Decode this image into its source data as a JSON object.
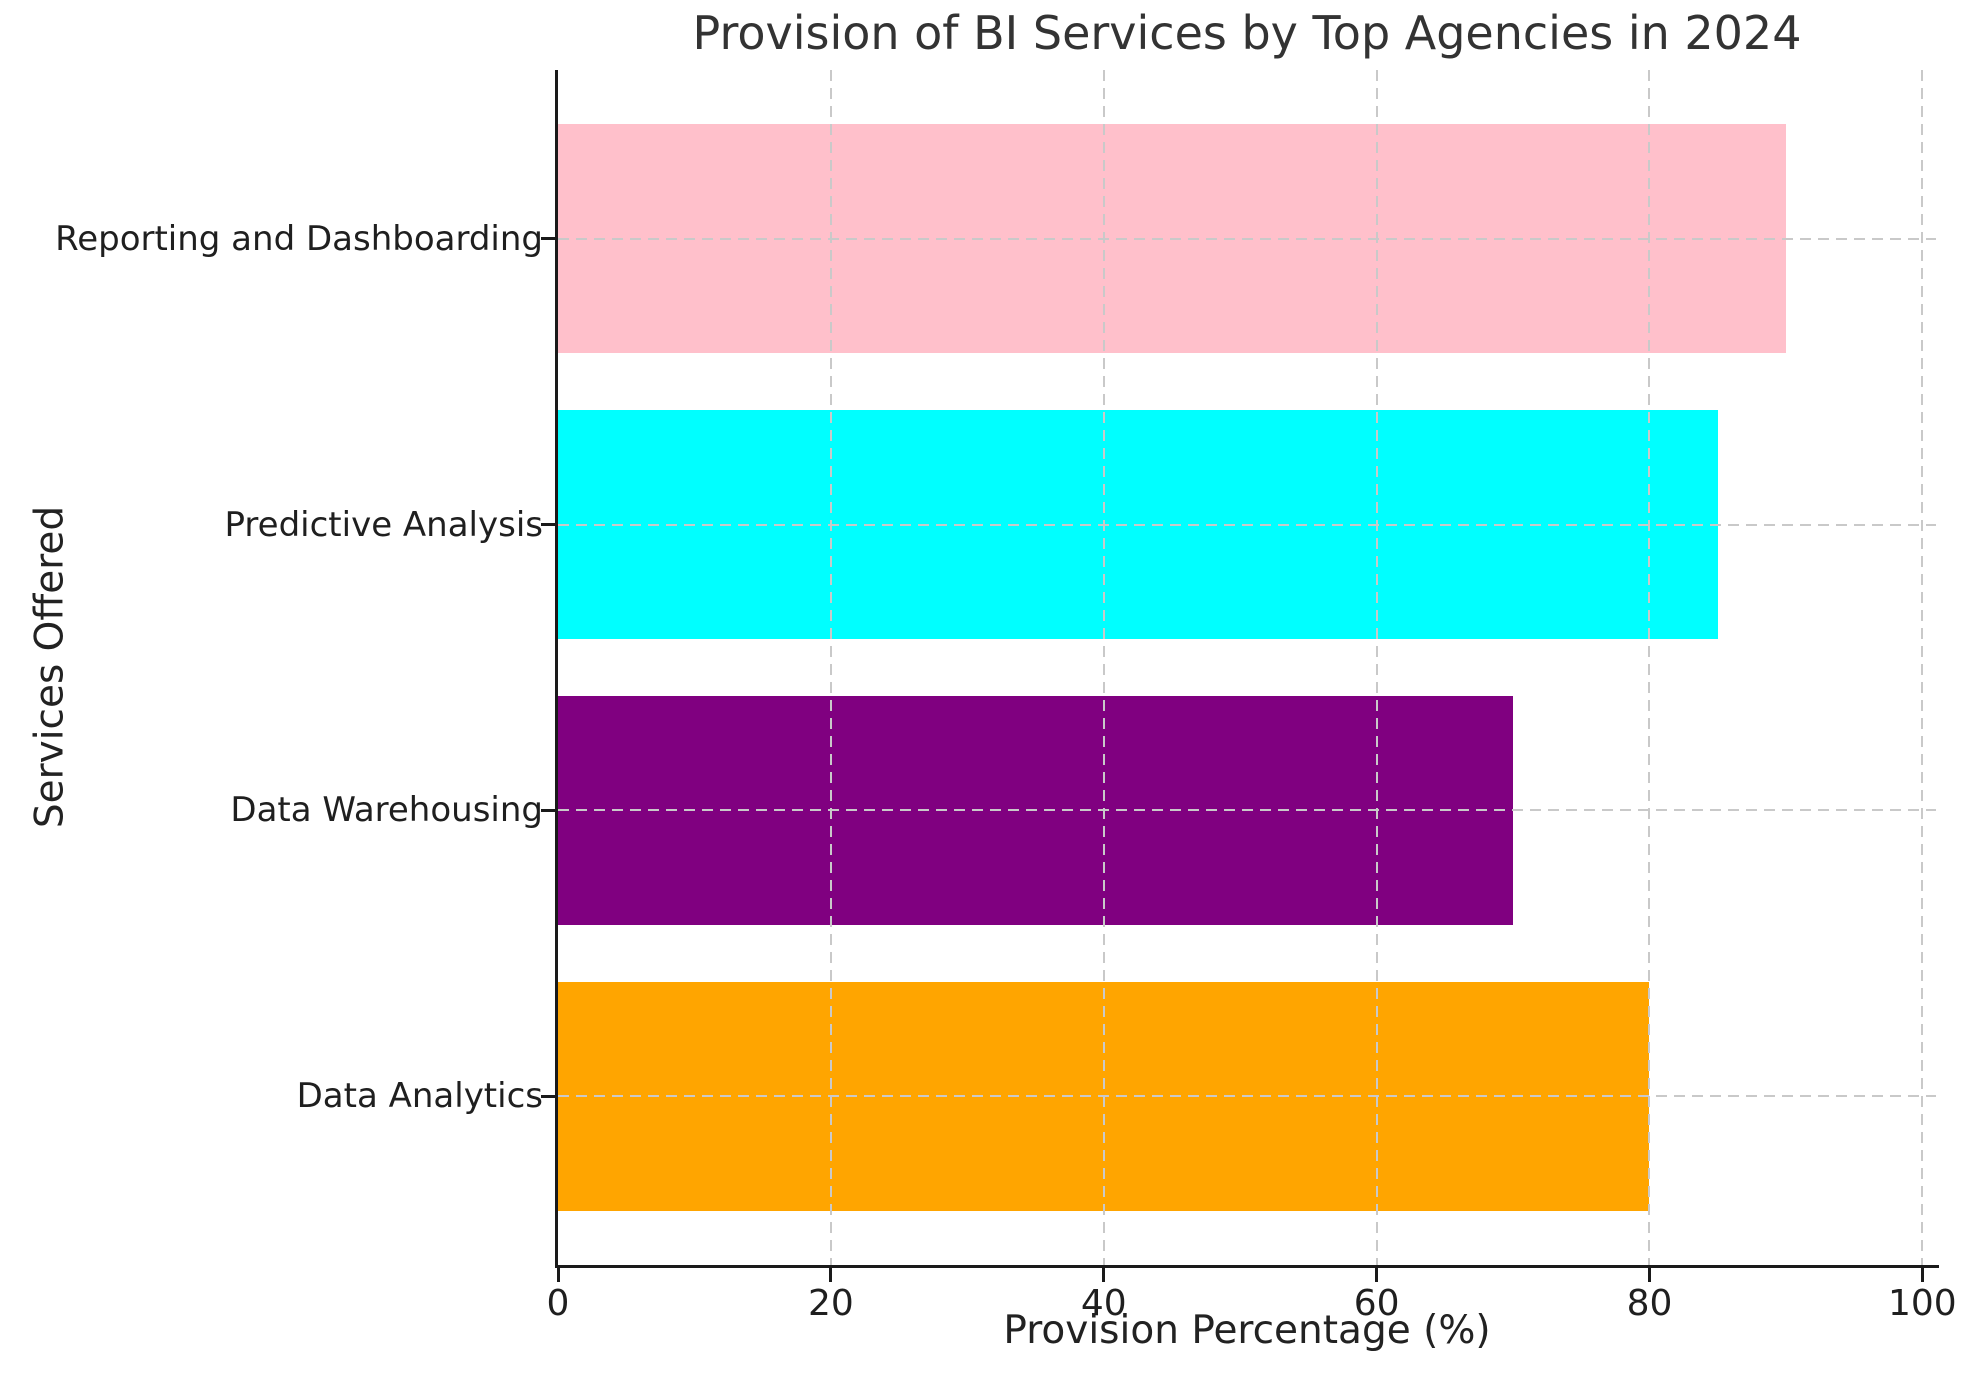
{
  "chart_data": {
    "type": "bar",
    "orientation": "horizontal",
    "title": "Provision of BI Services by Top Agencies in 2024",
    "xlabel": "Provision Percentage (%)",
    "ylabel": "Services Offered",
    "categories": [
      "Reporting and Dashboarding",
      "Predictive Analysis",
      "Data Warehousing",
      "Data Analytics"
    ],
    "values": [
      90,
      85,
      70,
      80
    ],
    "bar_colors": [
      "#ffc0cb",
      "#00ffff",
      "#800080",
      "#ffa500"
    ],
    "x_ticks": [
      0,
      20,
      40,
      60,
      80,
      100
    ],
    "xlim": [
      0,
      100
    ],
    "grid": "dashed",
    "legend": "none"
  }
}
